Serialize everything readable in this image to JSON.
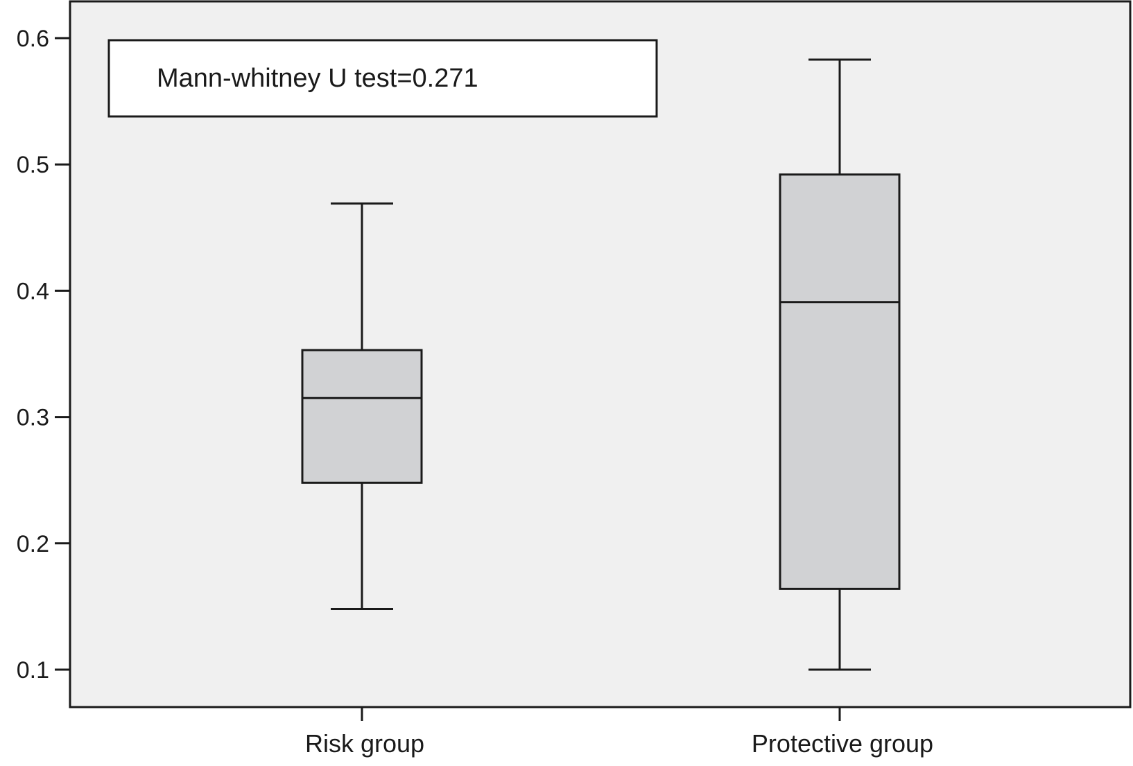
{
  "chart_data": {
    "type": "box",
    "title": "",
    "xlabel": "",
    "ylabel": "",
    "ylim": [
      0.07,
      0.63
    ],
    "yticks": [
      0.1,
      0.2,
      0.3,
      0.4,
      0.5,
      0.6
    ],
    "ytick_labels": [
      "0.1",
      "0.2",
      "0.3",
      "0.4",
      "0.5",
      "0.6"
    ],
    "categories": [
      "Risk group",
      "Protective group"
    ],
    "boxes": [
      {
        "category": "Risk group",
        "whisker_low": 0.148,
        "q1": 0.248,
        "median": 0.315,
        "q3": 0.353,
        "whisker_high": 0.469
      },
      {
        "category": "Protective group",
        "whisker_low": 0.1,
        "q1": 0.164,
        "median": 0.391,
        "q3": 0.492,
        "whisker_high": 0.583
      }
    ],
    "annotation": "Mann-whitney U test=0.271",
    "grid": false,
    "colors": {
      "plot_background": "#f0f0f0",
      "box_fill": "#d1d2d4",
      "line": "#1a1a1a",
      "annotation_background": "#ffffff"
    }
  }
}
